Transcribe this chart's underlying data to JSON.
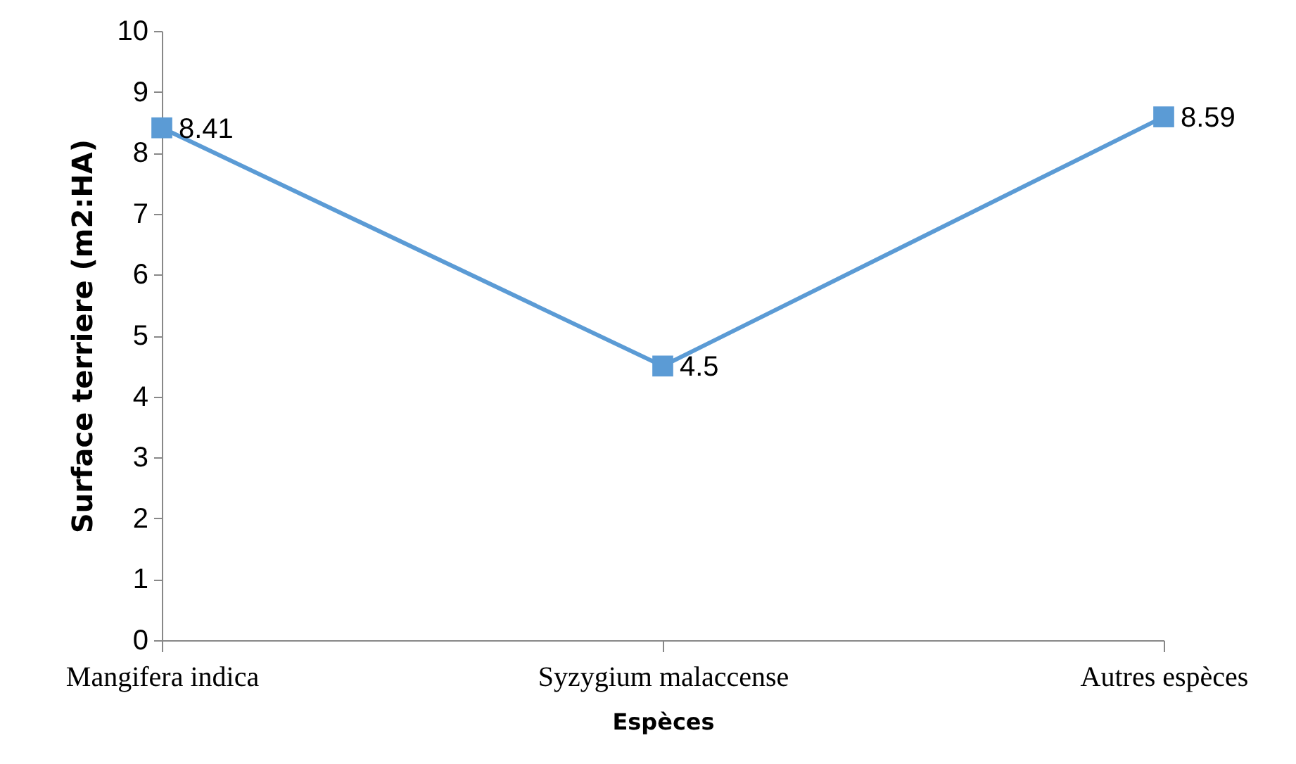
{
  "chart_data": {
    "type": "line",
    "xlabel": "Espèces",
    "ylabel": "Surface terriere (m2:HA)",
    "categories": [
      "Mangifera indica",
      "Syzygium malaccense",
      "Autres  espèces"
    ],
    "series": [
      {
        "color": "#5b9bd5",
        "values": [
          8.41,
          4.5,
          8.59
        ]
      }
    ],
    "ylim": [
      0,
      10
    ],
    "yticks": [
      0,
      1,
      2,
      3,
      4,
      5,
      6,
      7,
      8,
      9,
      10
    ],
    "data_labels": true,
    "marker": "square",
    "line_style": "solid"
  }
}
